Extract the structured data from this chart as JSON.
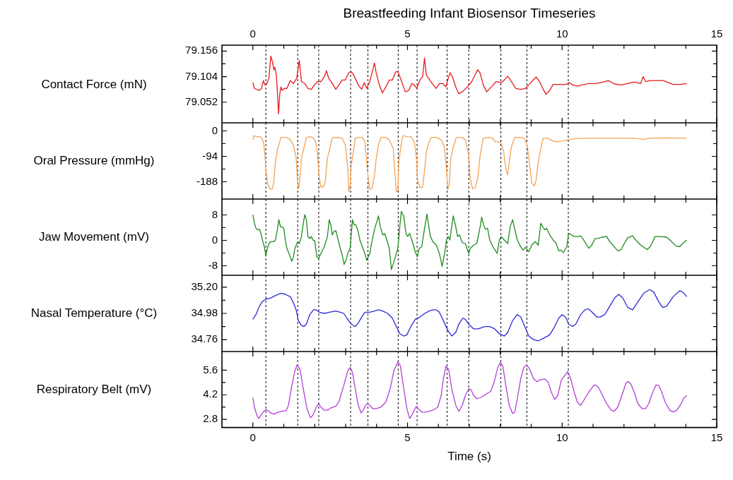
{
  "chart_data": [
    {
      "type": "line",
      "title": "Breastfeeding Infant Biosensor Timeseries",
      "ylabel": "Contact Force (mN)",
      "color": "#e8191e",
      "tick_labels": "y",
      "xlim": [
        -1,
        15
      ],
      "xticks": [
        0,
        {
          "value": 1,
          "label": null
        },
        {
          "value": 2,
          "label": null
        },
        {
          "value": 3,
          "label": null
        },
        {
          "value": 4,
          "label": null
        },
        5,
        {
          "value": 6,
          "label": null
        },
        {
          "value": 7,
          "label": null
        },
        {
          "value": 8,
          "label": null
        },
        {
          "value": 9,
          "label": null
        },
        10,
        {
          "value": 11,
          "label": null
        },
        {
          "value": 12,
          "label": null
        },
        {
          "value": 13,
          "label": null
        },
        {
          "value": 14,
          "label": null
        },
        15
      ],
      "x2lim": [
        -1,
        15
      ],
      "x2ticks": [
        0,
        {
          "value": 1,
          "label": null
        },
        {
          "value": 2,
          "label": null
        },
        {
          "value": 3,
          "label": null
        },
        {
          "value": 4,
          "label": null
        },
        5,
        {
          "value": 6,
          "label": null
        },
        {
          "value": 7,
          "label": null
        },
        {
          "value": 8,
          "label": null
        },
        {
          "value": 9,
          "label": null
        },
        10,
        {
          "value": 11,
          "label": null
        },
        {
          "value": 12,
          "label": null
        },
        {
          "value": 13,
          "label": null
        },
        {
          "value": 14,
          "label": null
        },
        15
      ],
      "ylim": [
        79.01,
        79.168
      ],
      "yticks": [
        79.052,
        {
          "value": 79.078,
          "label": null
        },
        79.104,
        {
          "value": 79.13,
          "label": null
        },
        79.156
      ],
      "x": [
        0.0,
        0.05,
        0.21,
        0.28,
        0.34,
        0.39,
        0.45,
        0.52,
        0.58,
        0.63,
        0.68,
        0.71,
        0.76,
        0.79,
        0.83,
        0.87,
        0.91,
        0.95,
        1.02,
        1.1,
        1.21,
        1.31,
        1.42,
        1.5,
        1.57,
        1.68,
        1.78,
        1.89,
        1.99,
        2.1,
        2.2,
        2.31,
        2.38,
        2.45,
        2.57,
        2.68,
        2.78,
        2.89,
        2.99,
        3.1,
        3.18,
        3.26,
        3.41,
        3.52,
        3.6,
        3.68,
        3.78,
        3.88,
        3.93,
        3.99,
        4.09,
        4.19,
        4.3,
        4.41,
        4.51,
        4.62,
        4.69,
        4.77,
        4.93,
        5.04,
        5.14,
        5.22,
        5.3,
        5.4,
        5.49,
        5.55,
        5.61,
        5.72,
        5.82,
        5.93,
        6.03,
        6.14,
        6.24,
        6.32,
        6.38,
        6.45,
        6.56,
        6.66,
        6.77,
        6.93,
        7.08,
        7.21,
        7.27,
        7.35,
        7.45,
        7.56,
        7.71,
        7.87,
        8.03,
        8.13,
        8.24,
        8.34,
        8.5,
        8.66,
        8.81,
        8.92,
        9.08,
        9.16,
        9.27,
        9.39,
        9.48,
        9.6,
        9.71,
        9.92,
        10.13,
        10.23,
        10.34,
        10.49,
        10.65,
        10.86,
        11.07,
        11.28,
        11.49,
        11.7,
        11.91,
        12.12,
        12.33,
        12.54,
        12.62,
        12.7,
        12.85,
        13.06,
        13.27,
        13.43,
        13.59,
        13.8,
        14.03
      ],
      "values": [
        79.092,
        79.08,
        79.076,
        79.08,
        79.096,
        79.087,
        79.089,
        79.101,
        79.146,
        79.135,
        79.118,
        79.123,
        79.107,
        79.076,
        79.028,
        79.069,
        79.083,
        79.076,
        79.08,
        79.08,
        79.096,
        79.09,
        79.101,
        79.137,
        79.094,
        79.09,
        79.08,
        79.078,
        79.087,
        79.094,
        79.094,
        79.104,
        79.116,
        79.101,
        79.09,
        79.078,
        79.087,
        79.097,
        79.097,
        79.112,
        79.114,
        79.107,
        79.087,
        79.078,
        79.092,
        79.08,
        79.094,
        79.118,
        79.132,
        79.111,
        79.087,
        79.071,
        79.083,
        79.097,
        79.097,
        79.114,
        79.114,
        79.101,
        79.073,
        79.076,
        79.09,
        79.087,
        79.08,
        79.097,
        79.104,
        79.142,
        79.107,
        79.097,
        79.088,
        79.08,
        79.09,
        79.09,
        79.083,
        79.101,
        79.112,
        79.104,
        79.083,
        79.069,
        79.073,
        79.083,
        79.094,
        79.111,
        79.118,
        79.111,
        79.087,
        79.073,
        79.083,
        79.094,
        79.092,
        79.097,
        79.105,
        79.096,
        79.08,
        79.078,
        79.08,
        79.087,
        79.098,
        79.103,
        79.094,
        79.078,
        79.068,
        79.076,
        79.088,
        79.088,
        79.088,
        79.092,
        79.087,
        79.085,
        79.087,
        79.09,
        79.09,
        79.092,
        79.096,
        79.089,
        79.087,
        79.09,
        79.093,
        79.09,
        79.104,
        79.094,
        79.096,
        79.096,
        79.096,
        79.092,
        79.088,
        79.088,
        79.09
      ],
      "ref_lines": [
        {
          "axis": "x",
          "value": 0.42,
          "line_style": "dashed",
          "color": "#000000"
        },
        {
          "axis": "x",
          "value": 1.45,
          "line_style": "dashed",
          "color": "#000000"
        },
        {
          "axis": "x",
          "value": 2.13,
          "line_style": "dashed",
          "color": "#000000"
        },
        {
          "axis": "x",
          "value": 3.16,
          "line_style": "dashed",
          "color": "#000000"
        },
        {
          "axis": "x",
          "value": 3.72,
          "line_style": "dashed",
          "color": "#000000"
        },
        {
          "axis": "x",
          "value": 4.7,
          "line_style": "dashed",
          "color": "#000000"
        },
        {
          "axis": "x",
          "value": 5.31,
          "line_style": "dashed",
          "color": "#000000"
        },
        {
          "axis": "x",
          "value": 6.28,
          "line_style": "dashed",
          "color": "#000000"
        },
        {
          "axis": "x",
          "value": 6.98,
          "line_style": "dashed",
          "color": "#000000"
        },
        {
          "axis": "x",
          "value": 8.02,
          "line_style": "dashed",
          "color": "#000000"
        },
        {
          "axis": "x",
          "value": 8.86,
          "line_style": "dashed",
          "color": "#000000"
        },
        {
          "axis": "x",
          "value": 10.2,
          "line_style": "dashed",
          "color": "#000000"
        }
      ]
    },
    {
      "type": "line",
      "ylabel": "Oral Pressure (mmHg)",
      "color": "#f4a257",
      "tick_labels": "y",
      "xlim": [
        -1,
        15
      ],
      "xticks": [
        0,
        {
          "value": 1,
          "label": null
        },
        {
          "value": 2,
          "label": null
        },
        {
          "value": 3,
          "label": null
        },
        {
          "value": 4,
          "label": null
        },
        5,
        {
          "value": 6,
          "label": null
        },
        {
          "value": 7,
          "label": null
        },
        {
          "value": 8,
          "label": null
        },
        {
          "value": 9,
          "label": null
        },
        10,
        {
          "value": 11,
          "label": null
        },
        {
          "value": 12,
          "label": null
        },
        {
          "value": 13,
          "label": null
        },
        {
          "value": 14,
          "label": null
        },
        15
      ],
      "ylim": [
        -252,
        30
      ],
      "yticks": [
        -188,
        {
          "value": -141,
          "label": null
        },
        -94,
        {
          "value": -47,
          "label": null
        },
        0
      ],
      "x": [
        0.0,
        0.03,
        0.1,
        0.21,
        0.28,
        0.35,
        0.39,
        0.44,
        0.49,
        0.56,
        0.63,
        0.68,
        0.73,
        0.79,
        0.87,
        0.91,
        1.02,
        1.1,
        1.21,
        1.31,
        1.4,
        1.44,
        1.48,
        1.52,
        1.57,
        1.65,
        1.73,
        1.84,
        1.94,
        2.03,
        2.08,
        2.15,
        2.2,
        2.28,
        2.34,
        2.41,
        2.49,
        2.57,
        2.73,
        2.89,
        2.99,
        3.07,
        3.1,
        3.15,
        3.18,
        3.25,
        3.31,
        3.41,
        3.54,
        3.62,
        3.67,
        3.73,
        3.78,
        3.85,
        3.93,
        3.99,
        4.06,
        4.14,
        4.3,
        4.41,
        4.54,
        4.59,
        4.64,
        4.69,
        4.72,
        4.77,
        4.83,
        4.88,
        4.98,
        5.11,
        5.22,
        5.28,
        5.32,
        5.4,
        5.49,
        5.56,
        5.61,
        5.7,
        5.77,
        5.93,
        6.09,
        6.19,
        6.26,
        6.3,
        6.35,
        6.4,
        6.47,
        6.58,
        6.77,
        6.87,
        6.98,
        7.03,
        7.1,
        7.19,
        7.27,
        7.35,
        7.45,
        7.61,
        7.73,
        7.84,
        7.97,
        8.03,
        8.11,
        8.18,
        8.24,
        8.29,
        8.36,
        8.47,
        8.66,
        8.78,
        8.87,
        8.95,
        9.02,
        9.1,
        9.16,
        9.23,
        9.31,
        9.39,
        9.52,
        9.71,
        9.83,
        10.02,
        10.18,
        10.34,
        10.55,
        11.28,
        12.33,
        12.64,
        12.85,
        13.38,
        14.03
      ],
      "values": [
        -33,
        -17,
        -21,
        -21,
        -25,
        -46,
        -89,
        -163,
        -200,
        -216,
        -213,
        -188,
        -114,
        -71,
        -40,
        -24,
        -24,
        -24,
        -33,
        -52,
        -101,
        -176,
        -213,
        -176,
        -101,
        -64,
        -25,
        -21,
        -24,
        -40,
        -77,
        -176,
        -207,
        -207,
        -188,
        -101,
        -64,
        -25,
        -24,
        -27,
        -52,
        -139,
        -225,
        -200,
        -126,
        -77,
        -27,
        -24,
        -24,
        -40,
        -101,
        -176,
        -216,
        -213,
        -169,
        -101,
        -52,
        -24,
        -24,
        -33,
        -64,
        -151,
        -225,
        -219,
        -114,
        -71,
        -27,
        -17,
        -21,
        -22,
        -40,
        -89,
        -176,
        -210,
        -207,
        -139,
        -77,
        -40,
        -24,
        -24,
        -33,
        -58,
        -139,
        -216,
        -200,
        -101,
        -64,
        -24,
        -24,
        -33,
        -89,
        -176,
        -213,
        -210,
        -176,
        -89,
        -27,
        -24,
        -25,
        -40,
        -40,
        -46,
        -77,
        -139,
        -163,
        -114,
        -58,
        -24,
        -24,
        -27,
        -52,
        -126,
        -194,
        -203,
        -182,
        -114,
        -64,
        -27,
        -27,
        -37,
        -40,
        -37,
        -33,
        -30,
        -27,
        -27,
        -27,
        -31,
        -27,
        -26,
        -27
      ],
      "ref_lines": [
        {
          "axis": "x",
          "value": 0.42,
          "line_style": "dashed",
          "color": "#000000"
        },
        {
          "axis": "x",
          "value": 1.45,
          "line_style": "dashed",
          "color": "#000000"
        },
        {
          "axis": "x",
          "value": 2.13,
          "line_style": "dashed",
          "color": "#000000"
        },
        {
          "axis": "x",
          "value": 3.16,
          "line_style": "dashed",
          "color": "#000000"
        },
        {
          "axis": "x",
          "value": 3.72,
          "line_style": "dashed",
          "color": "#000000"
        },
        {
          "axis": "x",
          "value": 4.7,
          "line_style": "dashed",
          "color": "#000000"
        },
        {
          "axis": "x",
          "value": 5.31,
          "line_style": "dashed",
          "color": "#000000"
        },
        {
          "axis": "x",
          "value": 6.28,
          "line_style": "dashed",
          "color": "#000000"
        },
        {
          "axis": "x",
          "value": 6.98,
          "line_style": "dashed",
          "color": "#000000"
        },
        {
          "axis": "x",
          "value": 8.02,
          "line_style": "dashed",
          "color": "#000000"
        },
        {
          "axis": "x",
          "value": 8.86,
          "line_style": "dashed",
          "color": "#000000"
        },
        {
          "axis": "x",
          "value": 10.2,
          "line_style": "dashed",
          "color": "#000000"
        }
      ]
    },
    {
      "type": "line",
      "ylabel": "Jaw Movement (mV)",
      "color": "#1e8c1e",
      "tick_labels": "y",
      "xlim": [
        -1,
        15
      ],
      "xticks": [
        0,
        {
          "value": 1,
          "label": null
        },
        {
          "value": 2,
          "label": null
        },
        {
          "value": 3,
          "label": null
        },
        {
          "value": 4,
          "label": null
        },
        5,
        {
          "value": 6,
          "label": null
        },
        {
          "value": 7,
          "label": null
        },
        {
          "value": 8,
          "label": null
        },
        {
          "value": 9,
          "label": null
        },
        10,
        {
          "value": 11,
          "label": null
        },
        {
          "value": 12,
          "label": null
        },
        {
          "value": 13,
          "label": null
        },
        {
          "value": 14,
          "label": null
        },
        15
      ],
      "ylim": [
        -11,
        13
      ],
      "yticks": [
        -8,
        {
          "value": -4,
          "label": null
        },
        0,
        {
          "value": 4,
          "label": null
        },
        8
      ],
      "x": [
        0.0,
        0.05,
        0.1,
        0.16,
        0.21,
        0.26,
        0.31,
        0.37,
        0.42,
        0.47,
        0.52,
        0.58,
        0.68,
        0.73,
        0.79,
        0.84,
        0.89,
        0.94,
        1.0,
        1.05,
        1.1,
        1.19,
        1.26,
        1.31,
        1.36,
        1.45,
        1.5,
        1.57,
        1.63,
        1.68,
        1.73,
        1.78,
        1.84,
        1.89,
        1.94,
        2.0,
        2.07,
        2.13,
        2.2,
        2.31,
        2.41,
        2.47,
        2.52,
        2.57,
        2.62,
        2.68,
        2.73,
        2.81,
        2.89,
        2.95,
        3.01,
        3.07,
        3.15,
        3.22,
        3.27,
        3.33,
        3.39,
        3.46,
        3.54,
        3.62,
        3.68,
        3.78,
        3.86,
        3.93,
        4.06,
        4.12,
        4.2,
        4.25,
        4.3,
        4.41,
        4.48,
        4.56,
        4.64,
        4.69,
        4.75,
        4.8,
        4.88,
        4.95,
        5.01,
        5.07,
        5.14,
        5.25,
        5.32,
        5.38,
        5.46,
        5.56,
        5.63,
        5.69,
        5.74,
        5.82,
        5.93,
        6.03,
        6.12,
        6.2,
        6.26,
        6.32,
        6.37,
        6.43,
        6.48,
        6.56,
        6.62,
        6.68,
        6.77,
        6.87,
        6.98,
        7.03,
        7.14,
        7.24,
        7.35,
        7.4,
        7.46,
        7.52,
        7.59,
        7.66,
        7.76,
        7.9,
        7.97,
        8.03,
        8.13,
        8.24,
        8.32,
        8.4,
        8.45,
        8.5,
        8.55,
        8.66,
        8.74,
        8.81,
        8.87,
        8.92,
        9.02,
        9.13,
        9.23,
        9.31,
        9.37,
        9.44,
        9.5,
        9.6,
        9.71,
        9.81,
        9.89,
        9.97,
        10.04,
        10.15,
        10.21,
        10.28,
        10.39,
        10.49,
        10.6,
        10.7,
        10.86,
        10.96,
        11.07,
        11.17,
        11.28,
        11.44,
        11.54,
        11.8,
        11.91,
        12.01,
        12.12,
        12.28,
        12.38,
        12.54,
        12.75,
        12.85,
        13.01,
        13.17,
        13.38,
        13.54,
        13.69,
        13.8,
        13.9,
        14.03
      ],
      "values": [
        8.1,
        5.4,
        3.8,
        3.3,
        3.5,
        2.2,
        0.1,
        -2.0,
        -5.0,
        -2.5,
        -1.0,
        -0.4,
        -0.4,
        0.1,
        3.3,
        6.5,
        4.3,
        4.3,
        3.8,
        0.1,
        -2.5,
        -4.7,
        -6.6,
        -5.2,
        -2.5,
        -0.4,
        -1.0,
        1.2,
        5.4,
        8.1,
        6.5,
        1.2,
        0.6,
        1.2,
        0.1,
        -0.1,
        -5.2,
        -5.7,
        -4.1,
        -2.0,
        1.2,
        6.5,
        4.9,
        1.7,
        2.8,
        3.1,
        1.2,
        -2.0,
        -4.7,
        -7.6,
        -6.3,
        -4.1,
        -2.2,
        6.5,
        4.9,
        4.9,
        3.3,
        0.1,
        -2.0,
        -4.1,
        -6.3,
        -4.1,
        0.1,
        3.3,
        7.7,
        4.3,
        1.7,
        2.2,
        1.2,
        -2.5,
        -9.2,
        -6.8,
        -4.1,
        -2.5,
        4.3,
        9.1,
        7.5,
        2.2,
        1.2,
        2.2,
        0.1,
        -3.6,
        -5.2,
        -2.5,
        -2.0,
        4.3,
        8.3,
        4.3,
        1.2,
        -0.4,
        -1.5,
        -4.1,
        -8.2,
        -4.1,
        0.1,
        1.2,
        0.1,
        4.3,
        7.7,
        4.3,
        1.2,
        1.7,
        -0.7,
        -1.0,
        -4.1,
        -2.5,
        -1.5,
        -1.0,
        4.3,
        7.3,
        4.9,
        3.5,
        3.8,
        0.1,
        -2.0,
        -4.1,
        0.1,
        1.2,
        0.1,
        -1.0,
        4.3,
        6.5,
        4.3,
        2.2,
        0.1,
        -2.0,
        -3.1,
        -2.2,
        -2.9,
        -3.6,
        -1.5,
        -0.4,
        -1.5,
        5.4,
        4.3,
        3.3,
        3.8,
        1.7,
        0.1,
        -1.0,
        -3.3,
        -3.1,
        -3.9,
        -2.0,
        2.2,
        1.9,
        1.2,
        1.2,
        1.4,
        0.1,
        -2.5,
        -1.5,
        0.6,
        0.6,
        1.0,
        1.2,
        -0.4,
        -3.3,
        -2.9,
        -1.0,
        0.8,
        1.4,
        0.1,
        -1.5,
        -2.9,
        -2.0,
        1.2,
        1.2,
        1.0,
        -0.4,
        -1.8,
        -2.0,
        -1.0,
        0.1
      ],
      "ref_lines": [
        {
          "axis": "x",
          "value": 0.42,
          "line_style": "dashed",
          "color": "#000000"
        },
        {
          "axis": "x",
          "value": 1.45,
          "line_style": "dashed",
          "color": "#000000"
        },
        {
          "axis": "x",
          "value": 2.13,
          "line_style": "dashed",
          "color": "#000000"
        },
        {
          "axis": "x",
          "value": 3.16,
          "line_style": "dashed",
          "color": "#000000"
        },
        {
          "axis": "x",
          "value": 3.72,
          "line_style": "dashed",
          "color": "#000000"
        },
        {
          "axis": "x",
          "value": 4.7,
          "line_style": "dashed",
          "color": "#000000"
        },
        {
          "axis": "x",
          "value": 5.31,
          "line_style": "dashed",
          "color": "#000000"
        },
        {
          "axis": "x",
          "value": 6.28,
          "line_style": "dashed",
          "color": "#000000"
        },
        {
          "axis": "x",
          "value": 6.98,
          "line_style": "dashed",
          "color": "#000000"
        },
        {
          "axis": "x",
          "value": 8.02,
          "line_style": "dashed",
          "color": "#000000"
        },
        {
          "axis": "x",
          "value": 8.86,
          "line_style": "dashed",
          "color": "#000000"
        },
        {
          "axis": "x",
          "value": 10.2,
          "line_style": "dashed",
          "color": "#000000"
        }
      ]
    },
    {
      "type": "line",
      "ylabel": "Nasal Temperature (°C)",
      "color": "#2a2ad6",
      "tick_labels": "y",
      "xlim": [
        -1,
        15
      ],
      "xticks": [
        0,
        {
          "value": 1,
          "label": null
        },
        {
          "value": 2,
          "label": null
        },
        {
          "value": 3,
          "label": null
        },
        {
          "value": 4,
          "label": null
        },
        5,
        {
          "value": 6,
          "label": null
        },
        {
          "value": 7,
          "label": null
        },
        {
          "value": 8,
          "label": null
        },
        {
          "value": 9,
          "label": null
        },
        10,
        {
          "value": 11,
          "label": null
        },
        {
          "value": 12,
          "label": null
        },
        {
          "value": 13,
          "label": null
        },
        {
          "value": 14,
          "label": null
        },
        15
      ],
      "ylim": [
        34.66,
        35.3
      ],
      "yticks": [
        34.76,
        {
          "value": 34.87,
          "label": null
        },
        34.98,
        {
          "value": 35.09,
          "label": null
        },
        {
          "value": 35.2,
          "label": "35.20"
        }
      ],
      "x": [
        0.0,
        0.1,
        0.21,
        0.31,
        0.42,
        0.58,
        0.73,
        0.91,
        1.05,
        1.21,
        1.31,
        1.4,
        1.47,
        1.57,
        1.65,
        1.73,
        1.84,
        1.96,
        2.05,
        2.15,
        2.31,
        2.47,
        2.68,
        2.83,
        2.94,
        3.04,
        3.18,
        3.31,
        3.41,
        3.52,
        3.62,
        3.78,
        3.93,
        4.06,
        4.2,
        4.36,
        4.51,
        4.62,
        4.75,
        4.88,
        4.98,
        5.11,
        5.25,
        5.4,
        5.56,
        5.7,
        5.82,
        5.93,
        6.03,
        6.16,
        6.3,
        6.43,
        6.56,
        6.66,
        6.79,
        6.87,
        6.98,
        7.14,
        7.29,
        7.5,
        7.66,
        7.82,
        7.97,
        8.13,
        8.24,
        8.4,
        8.55,
        8.66,
        8.76,
        8.92,
        9.08,
        9.23,
        9.39,
        9.6,
        9.76,
        9.89,
        10.0,
        10.11,
        10.21,
        10.34,
        10.44,
        10.6,
        10.74,
        10.84,
        10.97,
        11.12,
        11.23,
        11.38,
        11.54,
        11.7,
        11.83,
        11.96,
        12.12,
        12.28,
        12.43,
        12.64,
        12.83,
        12.96,
        13.12,
        13.25,
        13.38,
        13.59,
        13.8,
        13.9,
        14.03
      ],
      "values": [
        34.93,
        34.97,
        35.04,
        35.08,
        35.1,
        35.11,
        35.13,
        35.15,
        35.14,
        35.12,
        35.07,
        35.01,
        34.92,
        34.88,
        34.87,
        34.89,
        34.97,
        35.01,
        35.01,
        34.99,
        34.98,
        34.99,
        35.0,
        34.99,
        34.98,
        34.94,
        34.89,
        34.87,
        34.9,
        34.95,
        34.99,
        34.99,
        35.0,
        35.01,
        35.0,
        34.98,
        34.94,
        34.88,
        34.81,
        34.79,
        34.8,
        34.87,
        34.93,
        34.95,
        34.98,
        35.0,
        35.01,
        35.01,
        34.99,
        34.92,
        34.84,
        34.79,
        34.82,
        34.89,
        34.94,
        34.93,
        34.89,
        34.85,
        34.85,
        34.87,
        34.87,
        34.85,
        34.81,
        34.79,
        34.82,
        34.92,
        34.97,
        34.95,
        34.89,
        34.79,
        34.76,
        34.75,
        34.77,
        34.8,
        34.87,
        34.94,
        34.97,
        34.95,
        34.89,
        34.87,
        34.89,
        34.97,
        35.01,
        35.02,
        34.99,
        34.95,
        34.95,
        34.97,
        35.04,
        35.11,
        35.14,
        35.11,
        35.03,
        35.01,
        35.07,
        35.15,
        35.18,
        35.16,
        35.08,
        35.03,
        35.04,
        35.12,
        35.17,
        35.16,
        35.12
      ],
      "ref_lines": [
        {
          "axis": "x",
          "value": 0.42,
          "line_style": "dashed",
          "color": "#000000"
        },
        {
          "axis": "x",
          "value": 1.45,
          "line_style": "dashed",
          "color": "#000000"
        },
        {
          "axis": "x",
          "value": 2.13,
          "line_style": "dashed",
          "color": "#000000"
        },
        {
          "axis": "x",
          "value": 3.16,
          "line_style": "dashed",
          "color": "#000000"
        },
        {
          "axis": "x",
          "value": 3.72,
          "line_style": "dashed",
          "color": "#000000"
        },
        {
          "axis": "x",
          "value": 4.7,
          "line_style": "dashed",
          "color": "#000000"
        },
        {
          "axis": "x",
          "value": 5.31,
          "line_style": "dashed",
          "color": "#000000"
        },
        {
          "axis": "x",
          "value": 6.28,
          "line_style": "dashed",
          "color": "#000000"
        },
        {
          "axis": "x",
          "value": 6.98,
          "line_style": "dashed",
          "color": "#000000"
        },
        {
          "axis": "x",
          "value": 8.02,
          "line_style": "dashed",
          "color": "#000000"
        },
        {
          "axis": "x",
          "value": 8.86,
          "line_style": "dashed",
          "color": "#000000"
        },
        {
          "axis": "x",
          "value": 10.2,
          "line_style": "dashed",
          "color": "#000000"
        }
      ]
    },
    {
      "type": "line",
      "ylabel": "Respiratory Belt (mV)",
      "xlabel": "Time (s)",
      "color": "#b13fd6",
      "xlim": [
        -1,
        15
      ],
      "xticks": [
        0,
        {
          "value": 1,
          "label": null
        },
        {
          "value": 2,
          "label": null
        },
        {
          "value": 3,
          "label": null
        },
        {
          "value": 4,
          "label": null
        },
        5,
        {
          "value": 6,
          "label": null
        },
        {
          "value": 7,
          "label": null
        },
        {
          "value": 8,
          "label": null
        },
        {
          "value": 9,
          "label": null
        },
        10,
        {
          "value": 11,
          "label": null
        },
        {
          "value": 12,
          "label": null
        },
        {
          "value": 13,
          "label": null
        },
        {
          "value": 14,
          "label": null
        },
        15
      ],
      "ylim": [
        2.34,
        6.66
      ],
      "yticks": [
        2.8,
        {
          "value": 3.5,
          "label": null
        },
        4.2,
        {
          "value": 4.9,
          "label": null
        },
        5.6
      ],
      "x": [
        0.0,
        0.05,
        0.13,
        0.19,
        0.26,
        0.35,
        0.42,
        0.49,
        0.58,
        0.68,
        0.79,
        0.94,
        1.08,
        1.15,
        1.26,
        1.36,
        1.43,
        1.52,
        1.63,
        1.75,
        1.86,
        1.94,
        2.05,
        2.13,
        2.2,
        2.31,
        2.41,
        2.52,
        2.68,
        2.78,
        2.94,
        3.07,
        3.15,
        3.22,
        3.33,
        3.41,
        3.5,
        3.57,
        3.64,
        3.71,
        3.78,
        3.88,
        3.99,
        4.14,
        4.3,
        4.44,
        4.56,
        4.69,
        4.77,
        4.88,
        4.98,
        5.07,
        5.14,
        5.22,
        5.28,
        5.35,
        5.46,
        5.61,
        5.82,
        5.98,
        6.09,
        6.16,
        6.24,
        6.33,
        6.43,
        6.56,
        6.66,
        6.77,
        6.87,
        6.98,
        7.05,
        7.14,
        7.24,
        7.4,
        7.56,
        7.69,
        7.8,
        7.92,
        8.0,
        8.08,
        8.18,
        8.29,
        8.4,
        8.47,
        8.55,
        8.66,
        8.76,
        8.85,
        8.95,
        9.08,
        9.18,
        9.31,
        9.44,
        9.55,
        9.65,
        9.76,
        9.86,
        9.97,
        10.18,
        10.28,
        10.39,
        10.49,
        10.6,
        10.7,
        10.86,
        11.02,
        11.07,
        11.17,
        11.28,
        11.44,
        11.59,
        11.68,
        11.8,
        11.93,
        12.07,
        12.14,
        12.22,
        12.33,
        12.45,
        12.59,
        12.7,
        12.8,
        12.91,
        13.04,
        13.12,
        13.22,
        13.33,
        13.48,
        13.59,
        13.71,
        13.85,
        13.93,
        14.03
      ],
      "values": [
        4.03,
        3.5,
        3.03,
        2.85,
        3.03,
        3.26,
        3.35,
        3.3,
        3.17,
        3.09,
        3.19,
        3.26,
        3.3,
        3.6,
        4.73,
        5.57,
        5.89,
        5.67,
        4.54,
        3.41,
        2.9,
        3.03,
        3.5,
        3.69,
        3.5,
        3.32,
        3.32,
        3.45,
        3.54,
        3.79,
        4.73,
        5.57,
        5.76,
        5.48,
        4.35,
        3.6,
        3.17,
        3.32,
        3.6,
        3.69,
        3.6,
        3.41,
        3.41,
        3.5,
        3.79,
        4.54,
        5.57,
        6.08,
        5.85,
        4.54,
        3.41,
        2.85,
        3.03,
        3.32,
        3.54,
        3.41,
        3.22,
        3.22,
        3.32,
        3.5,
        4.16,
        5.1,
        5.82,
        5.67,
        4.54,
        3.6,
        3.26,
        3.6,
        4.16,
        4.54,
        4.5,
        4.16,
        3.97,
        4.07,
        4.26,
        4.39,
        4.91,
        5.76,
        6.04,
        5.85,
        4.73,
        3.6,
        3.13,
        3.22,
        3.97,
        5.1,
        5.76,
        5.89,
        5.67,
        5.1,
        4.95,
        5.06,
        5.1,
        4.91,
        4.35,
        3.94,
        4.16,
        5.01,
        5.52,
        5.1,
        4.35,
        3.79,
        3.6,
        3.88,
        4.35,
        4.73,
        4.76,
        4.63,
        4.26,
        3.69,
        3.32,
        3.26,
        3.5,
        4.16,
        4.88,
        4.95,
        4.82,
        4.35,
        3.69,
        3.41,
        3.41,
        3.69,
        4.26,
        4.76,
        4.73,
        4.35,
        3.79,
        3.32,
        3.22,
        3.32,
        3.69,
        4.01,
        4.16
      ],
      "ref_lines": [
        {
          "axis": "x",
          "value": 0.42,
          "line_style": "dashed",
          "color": "#000000"
        },
        {
          "axis": "x",
          "value": 1.45,
          "line_style": "dashed",
          "color": "#000000"
        },
        {
          "axis": "x",
          "value": 2.13,
          "line_style": "dashed",
          "color": "#000000"
        },
        {
          "axis": "x",
          "value": 3.16,
          "line_style": "dashed",
          "color": "#000000"
        },
        {
          "axis": "x",
          "value": 3.72,
          "line_style": "dashed",
          "color": "#000000"
        },
        {
          "axis": "x",
          "value": 4.7,
          "line_style": "dashed",
          "color": "#000000"
        },
        {
          "axis": "x",
          "value": 5.31,
          "line_style": "dashed",
          "color": "#000000"
        },
        {
          "axis": "x",
          "value": 6.28,
          "line_style": "dashed",
          "color": "#000000"
        },
        {
          "axis": "x",
          "value": 6.98,
          "line_style": "dashed",
          "color": "#000000"
        },
        {
          "axis": "x",
          "value": 8.02,
          "line_style": "dashed",
          "color": "#000000"
        },
        {
          "axis": "x",
          "value": 8.86,
          "line_style": "dashed",
          "color": "#000000"
        },
        {
          "axis": "x",
          "value": 10.2,
          "line_style": "dashed",
          "color": "#000000"
        }
      ]
    }
  ]
}
